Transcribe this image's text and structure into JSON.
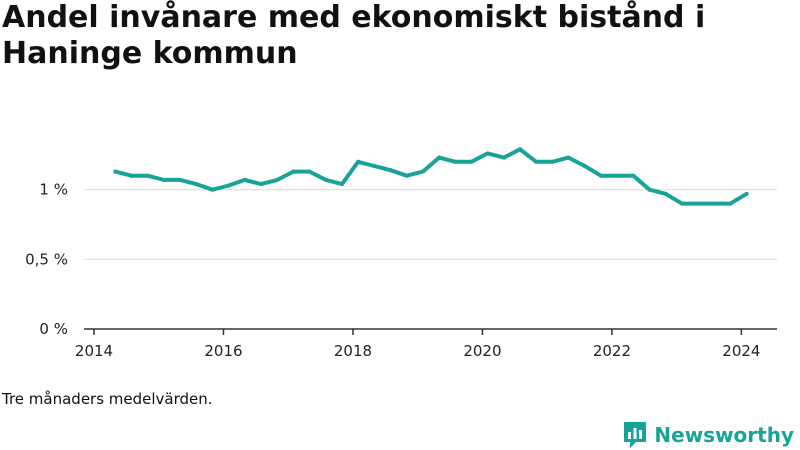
{
  "title": "Andel invånare med ekonomiskt bistånd i Haninge kommun",
  "note": "Tre månaders medelvärden.",
  "brand": {
    "name": "Newsworthy",
    "icon": "newsworthy-logo-icon",
    "color": "#17a398"
  },
  "colors": {
    "line": "#17a398",
    "grid": "#dddddd",
    "axis": "#333333"
  },
  "chart_data": {
    "type": "line",
    "title": "Andel invånare med ekonomiskt bistånd i Haninge kommun",
    "xlabel": "",
    "ylabel": "",
    "xlim": [
      2014,
      2024.55
    ],
    "ylim": [
      0,
      1.5
    ],
    "x_ticks": [
      2014,
      2016,
      2018,
      2020,
      2022,
      2024
    ],
    "y_ticks": [
      {
        "value": 0,
        "label": "0 %"
      },
      {
        "value": 0.5,
        "label": "0,5 %"
      },
      {
        "value": 1,
        "label": "1 %"
      }
    ],
    "grid": true,
    "series": [
      {
        "name": "Andel invånare med ekonomiskt bistånd",
        "x": [
          2014.33,
          2014.58,
          2014.83,
          2015.08,
          2015.33,
          2015.58,
          2015.83,
          2016.08,
          2016.33,
          2016.58,
          2016.83,
          2017.08,
          2017.33,
          2017.58,
          2017.83,
          2018.08,
          2018.33,
          2018.58,
          2018.83,
          2019.08,
          2019.33,
          2019.58,
          2019.83,
          2020.08,
          2020.33,
          2020.58,
          2020.83,
          2021.08,
          2021.33,
          2021.58,
          2021.83,
          2022.08,
          2022.33,
          2022.58,
          2022.83,
          2023.08,
          2023.33,
          2023.58,
          2023.83,
          2024.08
        ],
        "values": [
          1.13,
          1.1,
          1.1,
          1.07,
          1.07,
          1.04,
          1.0,
          1.03,
          1.07,
          1.04,
          1.07,
          1.13,
          1.13,
          1.07,
          1.04,
          1.2,
          1.17,
          1.14,
          1.1,
          1.13,
          1.23,
          1.2,
          1.2,
          1.26,
          1.23,
          1.29,
          1.2,
          1.2,
          1.23,
          1.17,
          1.1,
          1.1,
          1.1,
          1.0,
          0.97,
          0.9,
          0.9,
          0.9,
          0.9,
          0.97
        ]
      }
    ]
  }
}
